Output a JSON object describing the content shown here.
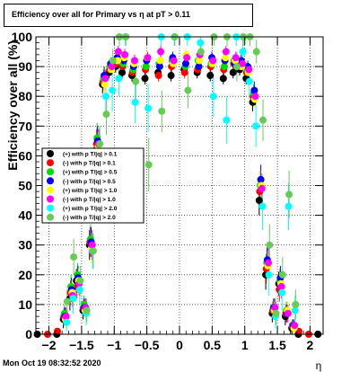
{
  "chart_data": {
    "type": "scatter",
    "title": "Efficiency over all for Primary vs   η at pT > 0.11",
    "xlabel": "η",
    "ylabel": "Efficiency over all (%)",
    "xlim": [
      -2.2,
      2.2
    ],
    "ylim": [
      0,
      100
    ],
    "x_ticks": [
      -2,
      -1.5,
      -1,
      -0.5,
      0,
      0.5,
      1,
      1.5,
      2
    ],
    "x_tick_labels": [
      "−2",
      "−1.5",
      "−1",
      "−0.5",
      "0",
      "0.5",
      "1",
      "1.5",
      "2"
    ],
    "y_ticks": [
      0,
      10,
      20,
      30,
      40,
      50,
      60,
      70,
      80,
      90,
      100
    ],
    "grid": true,
    "legend_position": "left-middle",
    "series": [
      {
        "name": "(+) with p T/|q| > 0.1",
        "color": "#000000",
        "x": [
          -2.15,
          -1.85,
          -1.75,
          -1.65,
          -1.55,
          -1.45,
          -1.35,
          -1.25,
          -1.15,
          -1.05,
          -0.95,
          -0.85,
          -0.7,
          -0.5,
          -0.3,
          -0.1,
          0.1,
          0.3,
          0.5,
          0.7,
          0.85,
          0.95,
          1.05,
          1.15,
          1.25,
          1.35,
          1.45,
          1.55,
          1.65,
          1.75,
          1.85,
          2.15
        ],
        "y": [
          0,
          0,
          5,
          12,
          18,
          8,
          30,
          62,
          84,
          88,
          90,
          88,
          87,
          86,
          88,
          87,
          89,
          88,
          87,
          86,
          88,
          89,
          86,
          78,
          45,
          20,
          7,
          17,
          6,
          2,
          0,
          0
        ],
        "err": [
          0,
          0,
          3,
          4,
          4,
          3,
          5,
          5,
          3,
          2,
          2,
          2,
          2,
          2,
          2,
          2,
          2,
          2,
          2,
          2,
          2,
          2,
          2,
          3,
          5,
          5,
          3,
          4,
          3,
          2,
          0,
          0
        ]
      },
      {
        "name": "(-) with p T/|q| > 0.1",
        "color": "#ff0000",
        "x": [
          -2.0,
          -1.85,
          -1.75,
          -1.65,
          -1.55,
          -1.45,
          -1.35,
          -1.25,
          -1.15,
          -1.05,
          -0.95,
          -0.85,
          -0.7,
          -0.5,
          -0.3,
          -0.1,
          0.1,
          0.3,
          0.5,
          0.7,
          0.85,
          0.95,
          1.05,
          1.15,
          1.25,
          1.35,
          1.45,
          1.55,
          1.65,
          1.75,
          1.85,
          2.0
        ],
        "y": [
          0,
          1,
          6,
          14,
          16,
          9,
          31,
          64,
          85,
          89,
          91,
          90,
          88,
          89,
          87,
          90,
          88,
          89,
          90,
          89,
          91,
          90,
          88,
          80,
          48,
          22,
          8,
          15,
          7,
          3,
          1,
          0
        ],
        "err": [
          0,
          1,
          3,
          4,
          4,
          3,
          5,
          5,
          3,
          2,
          2,
          2,
          2,
          2,
          2,
          2,
          2,
          2,
          2,
          2,
          2,
          2,
          2,
          3,
          5,
          5,
          3,
          4,
          3,
          2,
          1,
          0
        ]
      },
      {
        "name": "(+) with p T/|q| > 0.5",
        "color": "#00dd00",
        "x": [
          -1.75,
          -1.65,
          -1.55,
          -1.45,
          -1.35,
          -1.25,
          -1.15,
          -1.05,
          -0.95,
          -0.85,
          -0.7,
          -0.5,
          -0.3,
          -0.1,
          0.1,
          0.3,
          0.5,
          0.7,
          0.85,
          0.95,
          1.05,
          1.15,
          1.25,
          1.35,
          1.45,
          1.55,
          1.65,
          1.75
        ],
        "y": [
          7,
          16,
          20,
          10,
          32,
          66,
          86,
          90,
          92,
          91,
          89,
          90,
          91,
          92,
          90,
          92,
          91,
          90,
          92,
          91,
          89,
          81,
          50,
          24,
          9,
          18,
          8,
          3
        ],
        "err": [
          3,
          4,
          4,
          3,
          5,
          5,
          3,
          2,
          2,
          2,
          2,
          2,
          2,
          2,
          2,
          2,
          2,
          2,
          2,
          2,
          2,
          3,
          5,
          5,
          3,
          4,
          3,
          2
        ]
      },
      {
        "name": "(-) with p T/|q| > 0.5",
        "color": "#0000ff",
        "x": [
          -1.75,
          -1.65,
          -1.55,
          -1.45,
          -1.35,
          -1.25,
          -1.15,
          -1.05,
          -0.95,
          -0.85,
          -0.7,
          -0.5,
          -0.3,
          -0.1,
          0.1,
          0.3,
          0.5,
          0.7,
          0.85,
          0.95,
          1.05,
          1.15,
          1.25,
          1.35,
          1.45,
          1.55,
          1.65,
          1.75
        ],
        "y": [
          6,
          15,
          19,
          9,
          31,
          65,
          87,
          91,
          93,
          92,
          90,
          92,
          90,
          93,
          91,
          90,
          93,
          92,
          91,
          92,
          90,
          82,
          52,
          25,
          9,
          19,
          7,
          3
        ],
        "err": [
          3,
          4,
          4,
          3,
          5,
          5,
          3,
          2,
          2,
          2,
          2,
          2,
          2,
          2,
          2,
          2,
          2,
          2,
          2,
          2,
          2,
          3,
          5,
          5,
          3,
          4,
          3,
          2
        ]
      },
      {
        "name": "(+) with p T/|q| > 1.0",
        "color": "#ffff00",
        "x": [
          -1.75,
          -1.65,
          -1.55,
          -1.45,
          -1.35,
          -1.25,
          -1.15,
          -1.05,
          -0.95,
          -0.85,
          -0.7,
          -0.5,
          -0.3,
          -0.1,
          0.1,
          0.3,
          0.5,
          0.7,
          0.85,
          0.95,
          1.05,
          1.15,
          1.25,
          1.35,
          1.45,
          1.55,
          1.65,
          1.75
        ],
        "y": [
          5,
          14,
          18,
          8,
          29,
          63,
          84,
          89,
          92,
          93,
          91,
          93,
          92,
          91,
          94,
          92,
          91,
          93,
          92,
          90,
          88,
          79,
          50,
          23,
          8,
          17,
          8,
          2
        ],
        "err": [
          3,
          4,
          4,
          3,
          5,
          5,
          3,
          2,
          2,
          2,
          2,
          2,
          2,
          2,
          2,
          2,
          2,
          2,
          2,
          2,
          2,
          3,
          5,
          5,
          3,
          4,
          3,
          2
        ]
      },
      {
        "name": "(-) with p T/|q| > 1.0",
        "color": "#ff00ff",
        "x": [
          -1.75,
          -1.65,
          -1.55,
          -1.45,
          -1.35,
          -1.25,
          -1.15,
          -1.05,
          -0.95,
          -0.85,
          -0.7,
          -0.5,
          -0.3,
          -0.1,
          0.1,
          0.3,
          0.5,
          0.7,
          0.85,
          0.95,
          1.05,
          1.15,
          1.25,
          1.35,
          1.45,
          1.55,
          1.65,
          1.75
        ],
        "y": [
          6,
          13,
          17,
          9,
          30,
          64,
          86,
          90,
          95,
          94,
          92,
          93,
          95,
          92,
          93,
          94,
          92,
          95,
          93,
          91,
          89,
          80,
          49,
          24,
          9,
          16,
          7,
          3
        ],
        "err": [
          3,
          4,
          4,
          3,
          5,
          5,
          3,
          2,
          2,
          2,
          2,
          2,
          2,
          2,
          2,
          2,
          2,
          2,
          2,
          2,
          2,
          3,
          5,
          5,
          3,
          4,
          3,
          2
        ]
      },
      {
        "name": "(+) with p T/|q| > 2.0",
        "color": "#00ffff",
        "x": [
          -1.75,
          -1.65,
          -1.55,
          -1.45,
          -1.35,
          -1.25,
          -1.15,
          -1.05,
          -0.95,
          -0.85,
          -0.7,
          -0.5,
          -0.3,
          -0.1,
          0.1,
          0.3,
          0.5,
          0.7,
          0.85,
          0.95,
          1.05,
          1.15,
          1.25,
          1.35,
          1.45,
          1.55,
          1.65,
          1.75
        ],
        "y": [
          4,
          12,
          15,
          7,
          28,
          61,
          80,
          82,
          86,
          100,
          78,
          76,
          100,
          100,
          100,
          98,
          80,
          72,
          100,
          95,
          85,
          70,
          43,
          20,
          6,
          14,
          43,
          8
        ],
        "err": [
          3,
          5,
          5,
          4,
          6,
          6,
          6,
          7,
          6,
          3,
          7,
          8,
          3,
          3,
          3,
          4,
          7,
          8,
          3,
          5,
          6,
          7,
          8,
          7,
          4,
          6,
          8,
          5
        ]
      },
      {
        "name": "(-) with p T/|q| > 2.0",
        "color": "#66cc55",
        "x": [
          -1.75,
          -1.65,
          -1.55,
          -1.45,
          -1.35,
          -1.25,
          -1.15,
          -1.05,
          -0.95,
          -0.85,
          -0.7,
          -0.5,
          -0.3,
          -0.1,
          0.1,
          0.3,
          0.5,
          0.7,
          0.85,
          0.95,
          1.05,
          1.15,
          1.25,
          1.35,
          1.45,
          1.55,
          1.65,
          1.75
        ],
        "y": [
          11,
          26,
          18,
          8,
          28,
          64,
          74,
          92,
          100,
          100,
          85,
          57,
          75,
          100,
          82,
          95,
          100,
          100,
          90,
          100,
          100,
          95,
          72,
          30,
          7,
          20,
          47,
          10
        ],
        "err": [
          4,
          6,
          5,
          4,
          6,
          6,
          7,
          4,
          3,
          3,
          6,
          9,
          7,
          3,
          6,
          4,
          3,
          3,
          5,
          3,
          3,
          4,
          7,
          7,
          4,
          6,
          8,
          5
        ]
      }
    ]
  },
  "footer": {
    "timestamp": "Mon Oct 19 08:32:52 2020"
  }
}
